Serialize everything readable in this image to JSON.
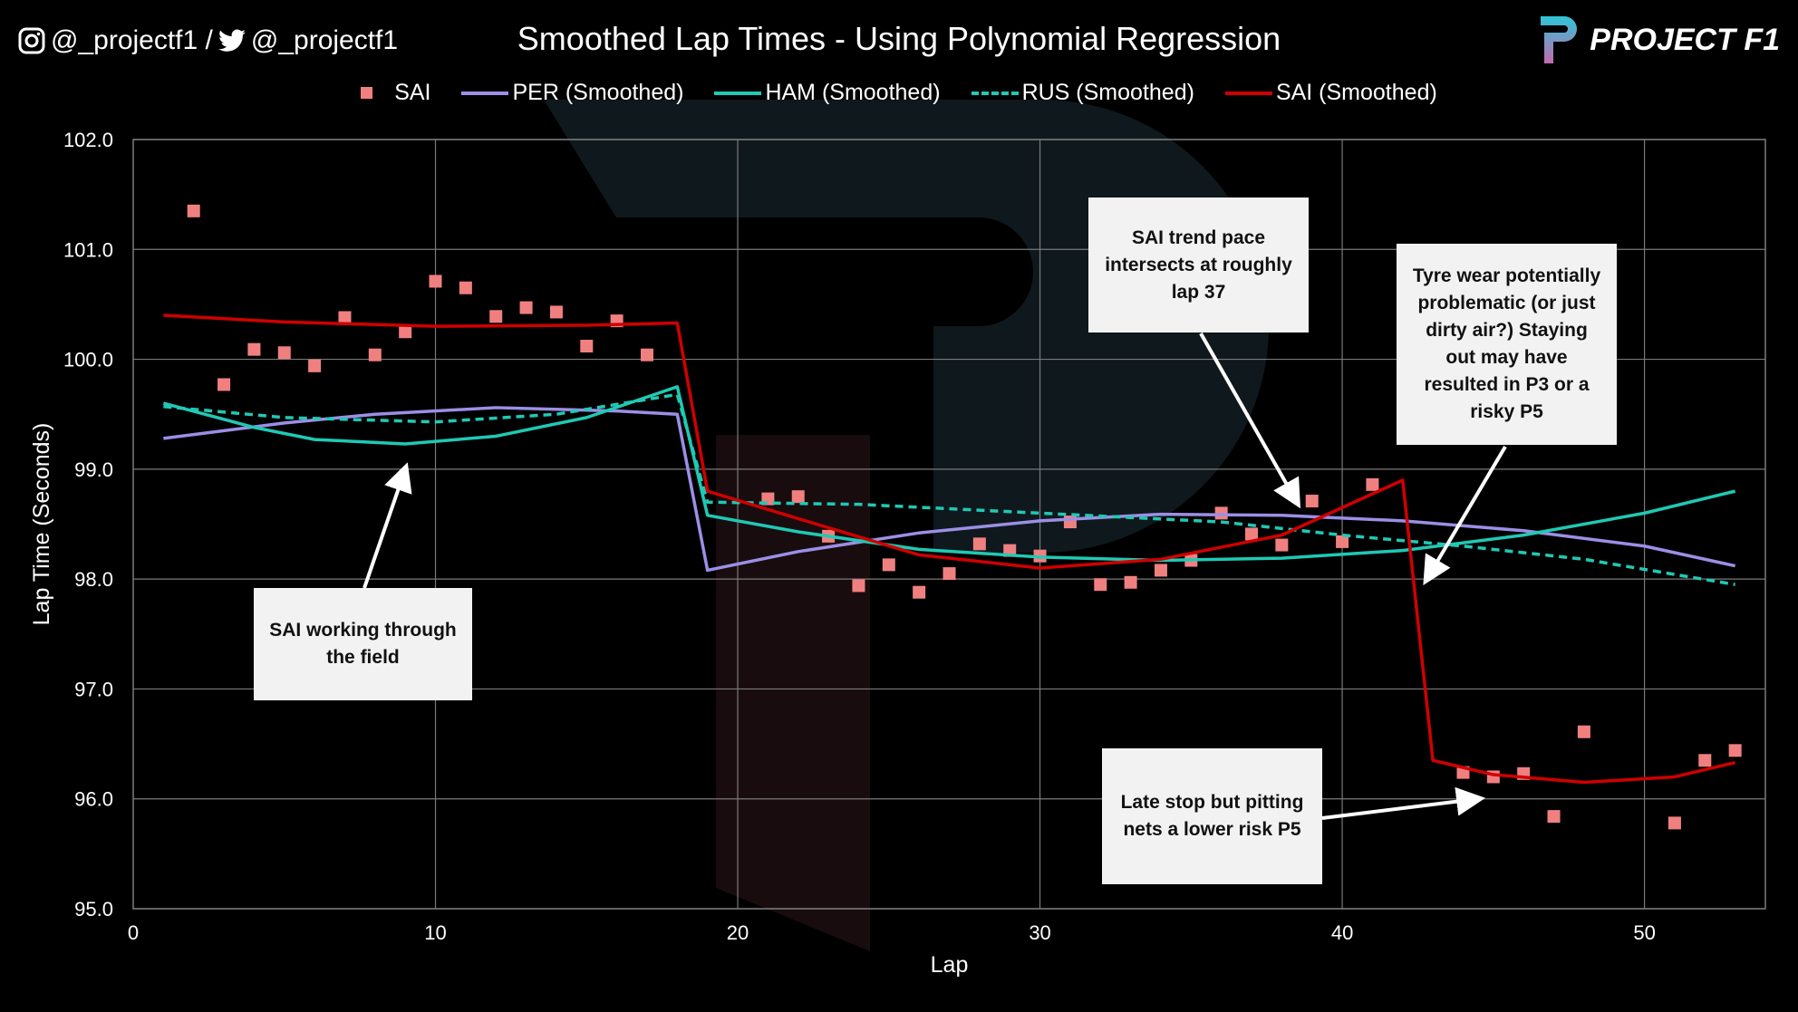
{
  "header": {
    "social_instagram": "@_projectf1 /",
    "social_twitter": "@_projectf1",
    "logo_text": "PROJECT F1",
    "icons": [
      "instagram-icon",
      "twitter-icon",
      "project-f1-logo"
    ]
  },
  "colors": {
    "SAI": "#f08080",
    "PER": "#9b8fe6",
    "HAM": "#1fc9b4",
    "RUS": "#1fc9b4",
    "SAI_smoothed": "#d00000",
    "grid": "#7a7a7a"
  },
  "chart_data": {
    "type": "line",
    "title": "Smoothed Lap Times - Using Polynomial Regression",
    "xlabel": "Lap",
    "ylabel": "Lap Time (Seconds)",
    "xlim": [
      0,
      54
    ],
    "ylim": [
      95,
      102
    ],
    "xticks": [
      0,
      10,
      20,
      30,
      40,
      50
    ],
    "yticks": [
      "95.0",
      "96.0",
      "97.0",
      "98.0",
      "99.0",
      "100.0",
      "101.0",
      "102.0"
    ],
    "grid": true,
    "legend_placement": "top",
    "series": [
      {
        "name": "SAI",
        "style": "scatter-square",
        "x": [
          2,
          3,
          4,
          5,
          6,
          7,
          8,
          9,
          10,
          11,
          12,
          13,
          14,
          15,
          16,
          17,
          21,
          22,
          23,
          24,
          25,
          26,
          27,
          28,
          29,
          30,
          31,
          32,
          33,
          34,
          35,
          36,
          37,
          38,
          39,
          40,
          41,
          44,
          45,
          46,
          47,
          48,
          51,
          52,
          53
        ],
        "y": [
          101.35,
          99.77,
          100.09,
          100.06,
          99.94,
          100.38,
          100.04,
          100.25,
          100.71,
          100.65,
          100.39,
          100.47,
          100.43,
          100.12,
          100.35,
          100.04,
          98.73,
          98.75,
          98.39,
          97.94,
          98.13,
          97.88,
          98.05,
          98.32,
          98.26,
          98.21,
          98.52,
          97.95,
          97.97,
          98.08,
          98.17,
          98.6,
          98.41,
          98.31,
          98.71,
          98.34,
          98.86,
          96.24,
          96.2,
          96.23,
          95.84,
          96.61,
          95.78,
          96.35,
          96.44
        ]
      },
      {
        "name": "PER (Smoothed)",
        "style": "solid",
        "x": [
          1,
          5,
          8,
          12,
          16,
          18,
          19,
          22,
          26,
          30,
          34,
          38,
          42,
          46,
          50,
          53
        ],
        "y": [
          99.28,
          99.42,
          99.5,
          99.56,
          99.53,
          99.5,
          98.08,
          98.25,
          98.42,
          98.53,
          98.59,
          98.58,
          98.53,
          98.44,
          98.3,
          98.12
        ]
      },
      {
        "name": "HAM (Smoothed)",
        "style": "solid",
        "x": [
          1,
          4,
          6,
          9,
          12,
          15,
          18,
          19,
          22,
          26,
          30,
          34,
          38,
          42,
          46,
          50,
          53
        ],
        "y": [
          99.6,
          99.38,
          99.27,
          99.23,
          99.3,
          99.47,
          99.75,
          98.58,
          98.43,
          98.27,
          98.2,
          98.17,
          98.19,
          98.26,
          98.4,
          98.6,
          98.8
        ]
      },
      {
        "name": "RUS (Smoothed)",
        "style": "dashed",
        "x": [
          1,
          5,
          10,
          14,
          18,
          19,
          24,
          30,
          36,
          40,
          44,
          48,
          53
        ],
        "y": [
          99.57,
          99.47,
          99.43,
          99.5,
          99.68,
          98.7,
          98.68,
          98.6,
          98.52,
          98.4,
          98.3,
          98.18,
          97.95
        ]
      },
      {
        "name": "SAI (Smoothed)",
        "style": "solid",
        "x": [
          1,
          5,
          10,
          15,
          18,
          19,
          22,
          26,
          30,
          34,
          38,
          42,
          43,
          45,
          48,
          51,
          53
        ],
        "y": [
          100.4,
          100.34,
          100.3,
          100.31,
          100.33,
          98.8,
          98.55,
          98.22,
          98.1,
          98.18,
          98.4,
          98.9,
          96.35,
          96.22,
          96.15,
          96.2,
          96.33
        ]
      }
    ],
    "annotations": [
      {
        "text": "SAI working through the field",
        "arrow_to": [
          9,
          99.0
        ]
      },
      {
        "text": "SAI trend pace intersects at roughly lap 37",
        "arrow_to": [
          38.5,
          98.7
        ]
      },
      {
        "text": "Tyre wear potentially problematic (or just dirty air?) Staying out may have resulted in P3 or a risky P5",
        "arrow_to": [
          42.8,
          98.0
        ]
      },
      {
        "text": "Late stop but pitting nets a lower risk P5",
        "arrow_to": [
          44.5,
          96.0
        ]
      }
    ]
  }
}
